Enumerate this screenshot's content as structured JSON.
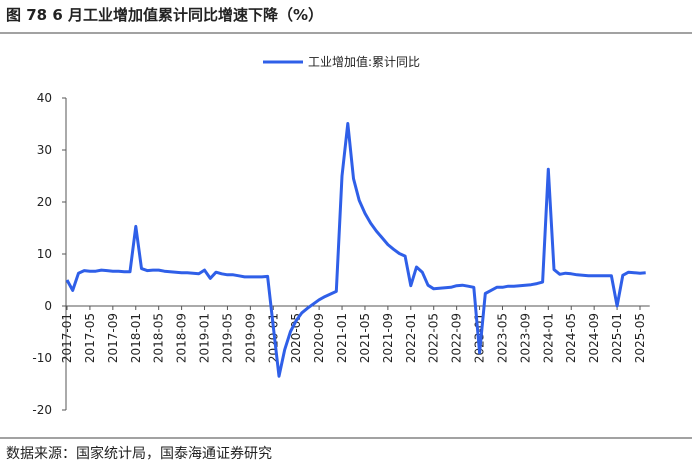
{
  "header": {
    "title": "图 78 6 月工业增加值累计同比增速下降（%）"
  },
  "chart_data": {
    "type": "line",
    "categories": [
      "2017-01",
      null,
      null,
      null,
      "2017-05",
      null,
      null,
      null,
      "2017-09",
      null,
      null,
      null,
      "2018-01",
      null,
      null,
      null,
      "2018-05",
      null,
      null,
      null,
      "2018-09",
      null,
      null,
      null,
      "2019-01",
      null,
      null,
      null,
      "2019-05",
      null,
      null,
      null,
      "2019-09",
      null,
      null,
      null,
      "2020-01",
      null,
      null,
      null,
      "2020-05",
      null,
      null,
      null,
      "2020-09",
      null,
      null,
      null,
      "2021-01",
      null,
      null,
      null,
      "2021-05",
      null,
      null,
      null,
      "2021-09",
      null,
      null,
      null,
      "2022-01",
      null,
      null,
      null,
      "2022-05",
      null,
      null,
      null,
      "2022-09",
      null,
      null,
      null,
      "2023-01",
      null,
      null,
      null,
      "2023-05",
      null,
      null,
      null,
      "2023-09",
      null,
      null,
      null,
      "2024-01",
      null,
      null,
      null,
      "2024-05",
      null,
      null,
      null,
      "2024-09",
      null,
      null,
      null,
      "2025-01",
      null,
      null,
      null,
      "2025-05",
      null
    ],
    "series": [
      {
        "name": "工业增加值:累计同比",
        "color": "#2f5fe8",
        "values": [
          5,
          3,
          6.3,
          6.8,
          6.7,
          6.7,
          6.9,
          6.8,
          6.7,
          6.7,
          6.6,
          6.6,
          15.3,
          7.2,
          6.8,
          6.9,
          6.9,
          6.7,
          6.6,
          6.5,
          6.4,
          6.4,
          6.3,
          6.2,
          6.9,
          5.3,
          6.5,
          6.2,
          6.0,
          6.0,
          5.8,
          5.6,
          5.6,
          5.6,
          5.6,
          5.7,
          -4,
          -13.5,
          -8.4,
          -4.9,
          -2.8,
          -1.3,
          -0.4,
          0.4,
          1.2,
          1.8,
          2.3,
          2.8,
          25,
          35.1,
          24.5,
          20.3,
          17.8,
          15.9,
          14.4,
          13.1,
          11.8,
          10.9,
          10.1,
          9.6,
          3.9,
          7.5,
          6.5,
          4.0,
          3.3,
          3.4,
          3.5,
          3.6,
          3.9,
          4.0,
          3.8,
          3.6,
          -9,
          2.4,
          3.0,
          3.6,
          3.6,
          3.8,
          3.8,
          3.9,
          4.0,
          4.1,
          4.3,
          4.6,
          26.3,
          7.0,
          6.1,
          6.3,
          6.2,
          6.0,
          5.9,
          5.8,
          5.8,
          5.8,
          5.8,
          5.8,
          0,
          5.9,
          6.5,
          6.4,
          6.3,
          6.4
        ]
      }
    ],
    "ylim": [
      -20,
      40
    ],
    "yticks": [
      -20,
      -10,
      0,
      10,
      20,
      30,
      40
    ],
    "legend": "top"
  },
  "footer": {
    "source": "数据来源：国家统计局，国泰海通证券研究"
  }
}
